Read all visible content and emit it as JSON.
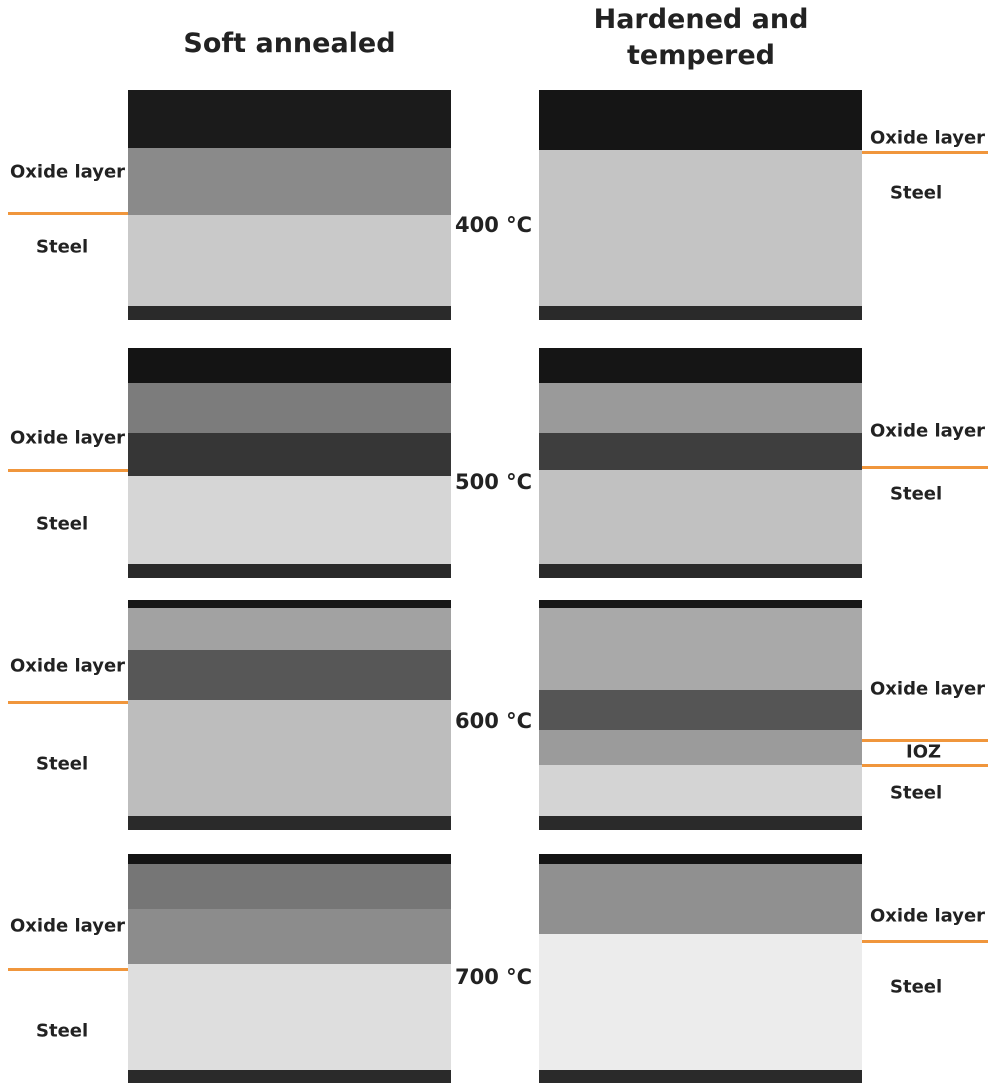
{
  "columns": [
    "Soft annealed",
    "Hardened and tempered"
  ],
  "rows": [
    {
      "temperature": "400 °C",
      "left": {
        "labels": [
          "Oxide layer",
          "Steel"
        ]
      },
      "right": {
        "labels": [
          "Oxide layer",
          "Steel"
        ]
      }
    },
    {
      "temperature": "500 °C",
      "left": {
        "labels": [
          "Oxide layer",
          "Steel"
        ]
      },
      "right": {
        "labels": [
          "Oxide layer",
          "Steel"
        ]
      }
    },
    {
      "temperature": "600 °C",
      "left": {
        "labels": [
          "Oxide layer",
          "Steel"
        ]
      },
      "right": {
        "labels": [
          "Oxide layer",
          "IOZ",
          "Steel"
        ]
      }
    },
    {
      "temperature": "700 °C",
      "left": {
        "labels": [
          "Oxide layer",
          "Steel"
        ]
      },
      "right": {
        "labels": [
          "Oxide layer",
          "Steel"
        ]
      }
    }
  ]
}
